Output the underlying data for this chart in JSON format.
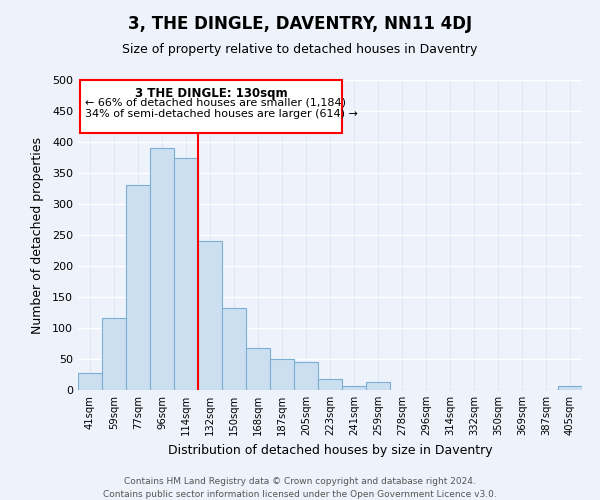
{
  "title": "3, THE DINGLE, DAVENTRY, NN11 4DJ",
  "subtitle": "Size of property relative to detached houses in Daventry",
  "xlabel": "Distribution of detached houses by size in Daventry",
  "ylabel": "Number of detached properties",
  "bar_color": "#ccdff0",
  "bar_edge_color": "#7aafd4",
  "background_color": "#eef2fa",
  "grid_color": "#d8dff0",
  "categories": [
    "41sqm",
    "59sqm",
    "77sqm",
    "96sqm",
    "114sqm",
    "132sqm",
    "150sqm",
    "168sqm",
    "187sqm",
    "205sqm",
    "223sqm",
    "241sqm",
    "259sqm",
    "278sqm",
    "296sqm",
    "314sqm",
    "332sqm",
    "350sqm",
    "369sqm",
    "387sqm",
    "405sqm"
  ],
  "values": [
    27,
    116,
    330,
    390,
    375,
    240,
    133,
    68,
    50,
    45,
    18,
    6,
    13,
    0,
    0,
    0,
    0,
    0,
    0,
    0,
    6
  ],
  "ylim": [
    0,
    500
  ],
  "yticks": [
    0,
    50,
    100,
    150,
    200,
    250,
    300,
    350,
    400,
    450,
    500
  ],
  "annotation_title": "3 THE DINGLE: 130sqm",
  "annotation_line1": "← 66% of detached houses are smaller (1,184)",
  "annotation_line2": "34% of semi-detached houses are larger (614) →",
  "footer_line1": "Contains HM Land Registry data © Crown copyright and database right 2024.",
  "footer_line2": "Contains public sector information licensed under the Open Government Licence v3.0."
}
